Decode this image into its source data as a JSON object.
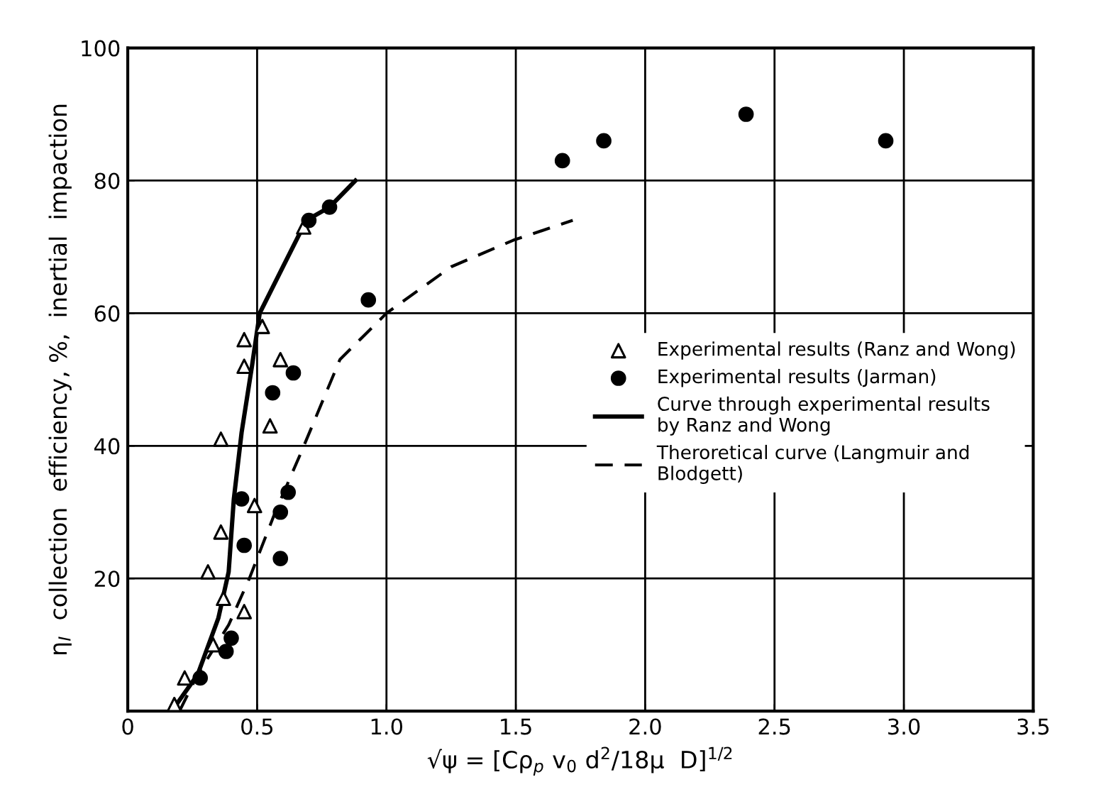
{
  "chart_data": {
    "type": "scatter",
    "xlabel": "√ψ = [Cρ$_{p}$ v$_{0}$ d$^{2}$/18μ  D]$^{1/2}$",
    "ylabel": "η$_{I}$  collection  efficiency, %,  inertial  impaction",
    "xlim": [
      0,
      3.5
    ],
    "ylim": [
      0,
      100
    ],
    "xticks": [
      0,
      0.5,
      {
        "value": 1,
        "label": "1.0"
      },
      1.5,
      {
        "value": 2,
        "label": "2.0"
      },
      2.5,
      {
        "value": 3,
        "label": "3.0"
      },
      3.5
    ],
    "yticks": [
      {
        "value": 0,
        "label": null
      },
      20,
      40,
      60,
      80,
      100
    ],
    "grid": true,
    "legend": "right",
    "series": [
      {
        "name": "Experimental results (Ranz and Wong)",
        "marker": "triangle",
        "color": "#000000",
        "x": [
          0.18,
          0.22,
          0.33,
          0.37,
          0.45,
          0.31,
          0.36,
          0.49,
          0.36,
          0.55,
          0.45,
          0.45,
          0.59,
          0.52,
          0.68
        ],
        "values": [
          1,
          5,
          10,
          17,
          15,
          21,
          27,
          31,
          41,
          43,
          52,
          56,
          53,
          58,
          73
        ]
      },
      {
        "name": "Experimental results (Jarman)",
        "marker": "circle",
        "color": "#000000",
        "x": [
          0.28,
          0.38,
          0.4,
          0.45,
          0.44,
          0.59,
          0.59,
          0.62,
          0.56,
          0.64,
          0.7,
          0.78,
          0.93,
          1.68,
          1.84,
          2.39,
          2.93
        ],
        "values": [
          5,
          9,
          11,
          25,
          32,
          23,
          30,
          33,
          48,
          51,
          74,
          76,
          62,
          83,
          86,
          90,
          86
        ]
      },
      {
        "name": "Curve through experimental results\nby Ranz and Wong",
        "type": "line",
        "line_style": "solid",
        "color": "#000000",
        "x": [
          0.17,
          0.27,
          0.35,
          0.39,
          0.41,
          0.44,
          0.48,
          0.51,
          0.6,
          0.69,
          0.78,
          0.88
        ],
        "values": [
          0,
          5.5,
          14,
          21,
          32,
          42,
          52,
          60,
          67,
          74,
          76,
          80
        ]
      },
      {
        "name": "Theroretical curve (Langmuir and\nBlodgett)",
        "type": "line",
        "line_style": "dashed",
        "color": "#000000",
        "x": [
          0.2,
          0.27,
          0.39,
          0.47,
          0.57,
          0.67,
          0.82,
          1.0,
          1.25,
          1.49,
          1.72
        ],
        "values": [
          0,
          5.5,
          13,
          20,
          30,
          39,
          53,
          60,
          67,
          71,
          74
        ]
      }
    ]
  }
}
